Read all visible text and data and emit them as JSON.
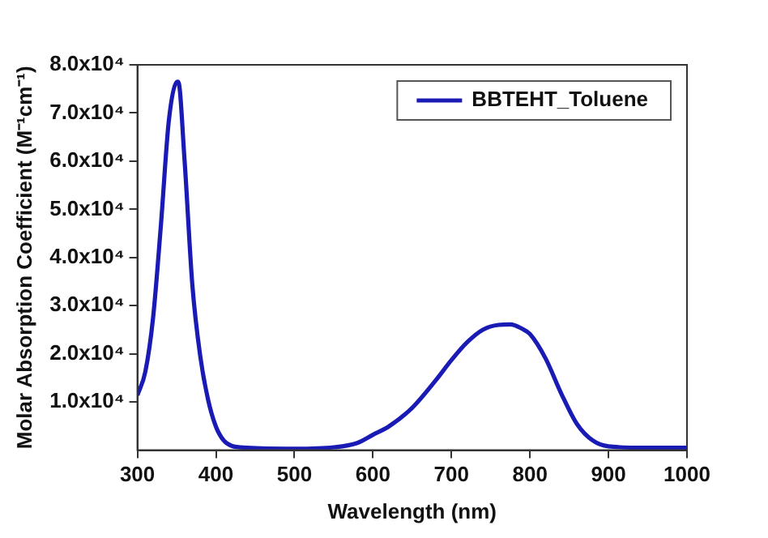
{
  "chart_data": {
    "type": "line",
    "xlabel": "Wavelength (nm)",
    "ylabel": "Molar Absorption Coefficient (M⁻¹cm⁻¹)",
    "xlim": [
      300,
      1000
    ],
    "xticks": [
      300,
      400,
      500,
      600,
      700,
      800,
      900,
      1000
    ],
    "ylim": [
      0,
      80000
    ],
    "yticks": [
      {
        "value": 10000,
        "label": "1.0x10⁴"
      },
      {
        "value": 20000,
        "label": "2.0x10⁴"
      },
      {
        "value": 30000,
        "label": "3.0x10⁴"
      },
      {
        "value": 40000,
        "label": "4.0x10⁴"
      },
      {
        "value": 50000,
        "label": "5.0x10⁴"
      },
      {
        "value": 60000,
        "label": "6.0x10⁴"
      },
      {
        "value": 70000,
        "label": "7.0x10⁴"
      },
      {
        "value": 80000,
        "label": "8.0x10⁴"
      }
    ],
    "grid": false,
    "legend": "top right",
    "marker": "none",
    "line_style": "solid",
    "x": [
      300,
      310,
      320,
      330,
      340,
      350,
      352,
      360,
      370,
      380,
      390,
      400,
      410,
      420,
      440,
      500,
      550,
      580,
      600,
      620,
      650,
      680,
      700,
      720,
      740,
      760,
      775,
      790,
      800,
      820,
      840,
      860,
      880,
      900,
      950,
      1000
    ],
    "series": [
      {
        "name": "BBTEHT_Toluene",
        "color": "#1a1ab4",
        "values": [
          11400,
          16200,
          27500,
          46800,
          68300,
          76400,
          76500,
          60400,
          34300,
          19600,
          10500,
          4900,
          2000,
          900,
          500,
          300,
          600,
          1500,
          3200,
          4900,
          8800,
          14500,
          18700,
          22400,
          25000,
          26000,
          26100,
          25200,
          24100,
          19000,
          11700,
          5400,
          2000,
          800,
          500,
          500
        ]
      }
    ]
  }
}
